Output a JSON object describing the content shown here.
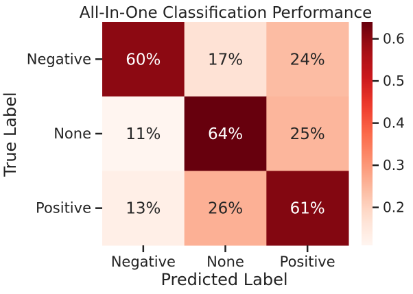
{
  "chart_data": {
    "type": "heatmap",
    "title": "All-In-One Classification Performance",
    "xlabel": "Predicted Label",
    "ylabel": "True Label",
    "x_categories": [
      "Negative",
      "None",
      "Positive"
    ],
    "y_categories": [
      "Negative",
      "None",
      "Positive"
    ],
    "values": [
      [
        0.6,
        0.17,
        0.24
      ],
      [
        0.11,
        0.64,
        0.25
      ],
      [
        0.13,
        0.26,
        0.61
      ]
    ],
    "cell_labels": [
      [
        "60%",
        "17%",
        "24%"
      ],
      [
        "11%",
        "64%",
        "25%"
      ],
      [
        "13%",
        "26%",
        "61%"
      ]
    ],
    "colormap": "Reds",
    "colorbar": {
      "range": [
        0.11,
        0.64
      ],
      "ticks": [
        0.2,
        0.3,
        0.4,
        0.5,
        0.6
      ],
      "tick_labels": [
        "0.2",
        "0.3",
        "0.4",
        "0.5",
        "0.6"
      ]
    }
  }
}
